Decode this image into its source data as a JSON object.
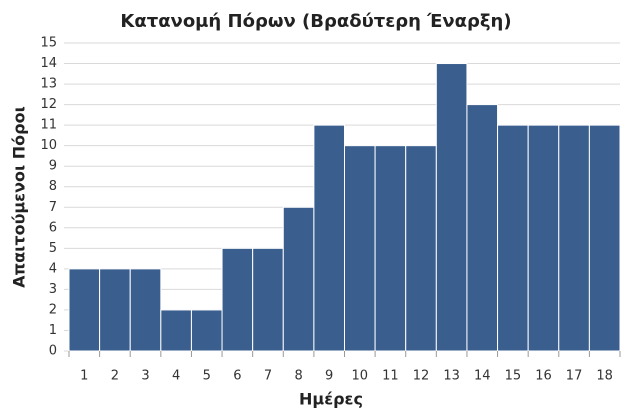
{
  "chart_data": {
    "type": "bar",
    "title": "Κατανομή Πόρων (Βραδύτερη Έναρξη)",
    "x_label": "Ημέρες",
    "y_label": "Απαιτούμενοι Πόροι",
    "categories": [
      "1",
      "2",
      "3",
      "4",
      "5",
      "6",
      "7",
      "8",
      "9",
      "10",
      "11",
      "12",
      "13",
      "14",
      "15",
      "16",
      "17",
      "18"
    ],
    "values": [
      4,
      4,
      4,
      2,
      2,
      5,
      5,
      7,
      11,
      10,
      10,
      10,
      14,
      12,
      11,
      11,
      11,
      11
    ],
    "color": "#3a5f8f",
    "ylim": [
      0,
      15
    ],
    "yticks": [
      0,
      1,
      2,
      3,
      4,
      5,
      6,
      7,
      8,
      9,
      10,
      11,
      12,
      13,
      14,
      15
    ],
    "grid": true
  }
}
